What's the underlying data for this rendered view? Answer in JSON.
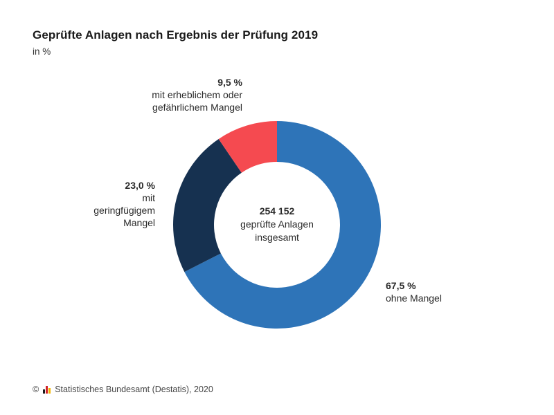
{
  "header": {
    "title": "Geprüfte Anlagen nach Ergebnis der Prüfung 2019",
    "subtitle": "in %"
  },
  "center": {
    "total": "254 152",
    "desc": "geprüfte Anlagen\ninsgesamt"
  },
  "labels": {
    "severe": {
      "pct": "9,5 %",
      "name": "mit erheblichem oder\ngefährlichem Mangel"
    },
    "minor": {
      "pct": "23,0 %",
      "name": "mit\ngeringfügigem\nMangel"
    },
    "none": {
      "pct": "67,5 %",
      "name": "ohne Mangel"
    }
  },
  "footer": {
    "copyright": "©",
    "source": "Statistisches Bundesamt (Destatis), 2020"
  },
  "colors": {
    "ohne_mangel": "#2e74b8",
    "geringfuegig": "#163150",
    "erheblich": "#f54a50"
  },
  "chart_data": {
    "type": "pie",
    "variant": "donut",
    "title": "Geprüfte Anlagen nach Ergebnis der Prüfung 2019",
    "subtitle": "in %",
    "categories": [
      "ohne Mangel",
      "mit geringfügigem Mangel",
      "mit erheblichem oder gefährlichem Mangel"
    ],
    "values": [
      67.5,
      23.0,
      9.5
    ],
    "total": 254152,
    "unit": "%"
  }
}
